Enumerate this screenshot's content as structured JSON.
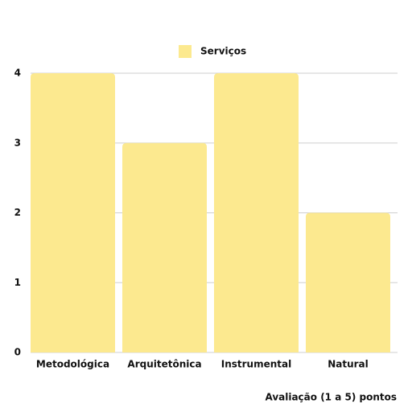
{
  "chart_data": {
    "type": "bar",
    "x_label": "Avaliação (1 a 5) pontos",
    "categories": [
      "Metodológica",
      "Arquitetônica",
      "Instrumental",
      "Natural"
    ],
    "series": [
      {
        "name": "Serviços",
        "color": "#fce98f",
        "values": [
          4,
          3,
          4,
          2
        ]
      }
    ],
    "ylim": [
      0,
      4
    ],
    "yticks": [
      0,
      1,
      2,
      3,
      4
    ],
    "grid": true
  }
}
